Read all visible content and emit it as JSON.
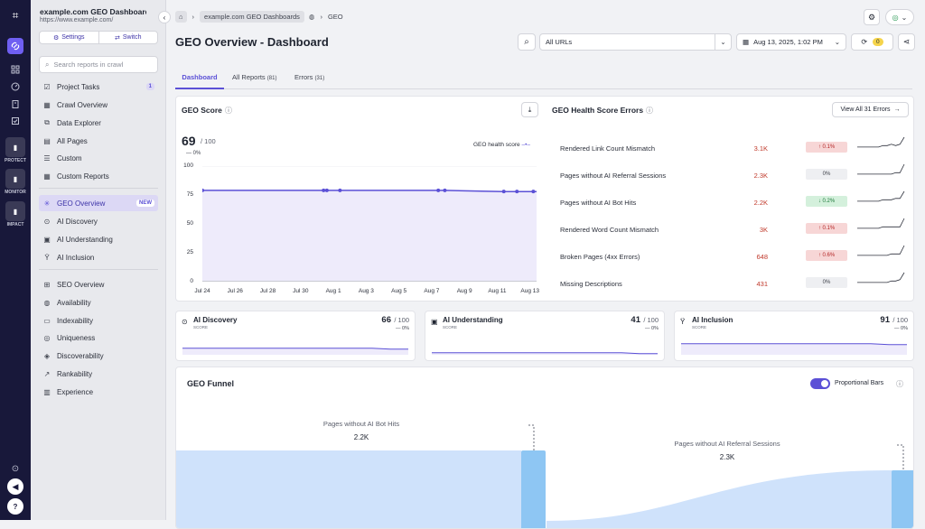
{
  "rail": {
    "protect": "PROTECT",
    "monitor": "MONITOR",
    "impact": "IMPACT"
  },
  "project": {
    "name": "example.com GEO Dashboard",
    "url": "https://www.example.com/",
    "settings": "Settings",
    "switch": "Switch"
  },
  "search": {
    "placeholder": "Search reports in crawl"
  },
  "nav": {
    "tasks": "Project Tasks",
    "tasks_count": "1",
    "crawl": "Crawl Overview",
    "explorer": "Data Explorer",
    "allpages": "All Pages",
    "custom": "Custom",
    "customreports": "Custom Reports",
    "geo": "GEO Overview",
    "geo_badge": "NEW",
    "aidisc": "AI Discovery",
    "aiund": "AI Understanding",
    "aiinc": "AI Inclusion",
    "seo": "SEO Overview",
    "avail": "Availability",
    "index": "Indexability",
    "uniq": "Uniqueness",
    "disc": "Discoverability",
    "rank": "Rankability",
    "exp": "Experience"
  },
  "breadcrumb": {
    "item1": "example.com GEO Dashboards",
    "item2": "GEO"
  },
  "page": {
    "title": "GEO Overview - Dashboard"
  },
  "toolbar": {
    "url_select": "All URLs",
    "date": "Aug 13, 2025, 1:02 PM",
    "sync_count": "0"
  },
  "tabs": [
    {
      "label": "Dashboard",
      "count": ""
    },
    {
      "label": "All Reports",
      "count": "(81)"
    },
    {
      "label": "Errors",
      "count": "(31)"
    }
  ],
  "geo_score": {
    "title": "GEO Score",
    "value": "69",
    "max": "/ 100",
    "change": "— 0%",
    "legend": "GEO health score"
  },
  "chart_data": {
    "type": "line",
    "categories": [
      "Jul 24",
      "Jul 26",
      "Jul 28",
      "Jul 30",
      "Aug 1",
      "Aug 3",
      "Aug 5",
      "Aug 7",
      "Aug 9",
      "Aug 11",
      "Aug 13"
    ],
    "series": [
      {
        "name": "GEO health score",
        "x": [
          0,
          7.4,
          7.6,
          8.4,
          14.4,
          14.8,
          18.4,
          19.2,
          20.2,
          21.8,
          22.2,
          22.8,
          23.2,
          23.6,
          24.4
        ],
        "values": [
          79,
          79,
          79,
          79,
          79,
          79,
          78,
          78,
          78,
          78,
          75,
          75,
          74,
          70,
          69
        ]
      }
    ],
    "ylim": [
      0,
      100
    ],
    "yticks": [
      0,
      25,
      50,
      75,
      100
    ],
    "color": "#5b50d6"
  },
  "health_errors": {
    "title": "GEO Health Score Errors",
    "view_all": "View All 31 Errors",
    "rows": [
      {
        "label": "Rendered Link Count Mismatch",
        "count": "3.1K",
        "change": "↑ 0.1%",
        "dir": "up",
        "spark": [
          2,
          2,
          2,
          2,
          2,
          2,
          3,
          3,
          4,
          3,
          4,
          9
        ]
      },
      {
        "label": "Pages without AI Referral Sessions",
        "count": "2.3K",
        "change": "0%",
        "dir": "flat",
        "spark": [
          2,
          2,
          2,
          2,
          2,
          2,
          2,
          2,
          2,
          3,
          3,
          9
        ]
      },
      {
        "label": "Pages without AI Bot Hits",
        "count": "2.2K",
        "change": "↓ 0.2%",
        "dir": "down",
        "spark": [
          2,
          2,
          2,
          2,
          2,
          2,
          3,
          3,
          3,
          4,
          4,
          9
        ]
      },
      {
        "label": "Rendered Word Count Mismatch",
        "count": "3K",
        "change": "↑ 0.1%",
        "dir": "up",
        "spark": [
          2,
          2,
          2,
          2,
          2,
          2,
          3,
          3,
          3,
          3,
          3,
          9
        ]
      },
      {
        "label": "Broken Pages (4xx Errors)",
        "count": "648",
        "change": "↑ 0.6%",
        "dir": "up",
        "spark": [
          2,
          2,
          2,
          2,
          2,
          2,
          2,
          2,
          3,
          3,
          3,
          9
        ]
      },
      {
        "label": "Missing Descriptions",
        "count": "431",
        "change": "0%",
        "dir": "flat",
        "spark": [
          2,
          2,
          2,
          2,
          2,
          2,
          2,
          2,
          3,
          3,
          4,
          9
        ]
      }
    ]
  },
  "score_cards": [
    {
      "title": "AI Discovery",
      "sub": "SCORE",
      "value": "66",
      "max": "/ 100",
      "change": "— 0%"
    },
    {
      "title": "AI Understanding",
      "sub": "SCORE",
      "value": "41",
      "max": "/ 100",
      "change": "— 0%"
    },
    {
      "title": "AI Inclusion",
      "sub": "SCORE",
      "value": "91",
      "max": "/ 100",
      "change": "— 0%"
    }
  ],
  "funnel": {
    "title": "GEO Funnel",
    "toggle_label": "Proportional Bars",
    "toggle_on": true,
    "stages": [
      {
        "label": "Pages without AI Bot Hits",
        "value": "2.2K"
      },
      {
        "label": "Pages without AI Referral Sessions",
        "value": "2.3K"
      }
    ]
  }
}
